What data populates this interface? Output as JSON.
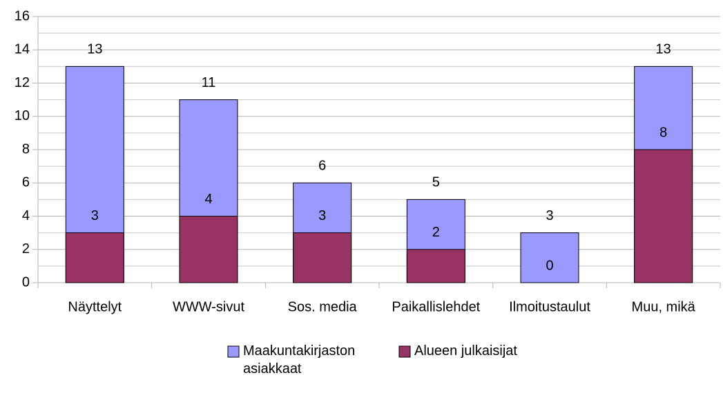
{
  "chart_data": {
    "type": "bar",
    "overlap": true,
    "categories": [
      "Näyttelyt",
      "WWW-sivut",
      "Sos. media",
      "Paikallislehdet",
      "Ilmoitustaulut",
      "Muu, mikä"
    ],
    "series": [
      {
        "name": "Maakuntakirjaston asiakkaat",
        "color": "#9999ff",
        "values": [
          13,
          11,
          6,
          5,
          3,
          13
        ]
      },
      {
        "name": "Alueen julkaisijat",
        "color": "#993366",
        "values": [
          3,
          4,
          3,
          2,
          0,
          8
        ]
      }
    ],
    "ylim": [
      0,
      16
    ],
    "yticks": [
      0,
      2,
      4,
      6,
      8,
      10,
      12,
      14,
      16
    ],
    "grid": true,
    "minor_grid": true,
    "data_labels": true,
    "legend": "bottom"
  }
}
